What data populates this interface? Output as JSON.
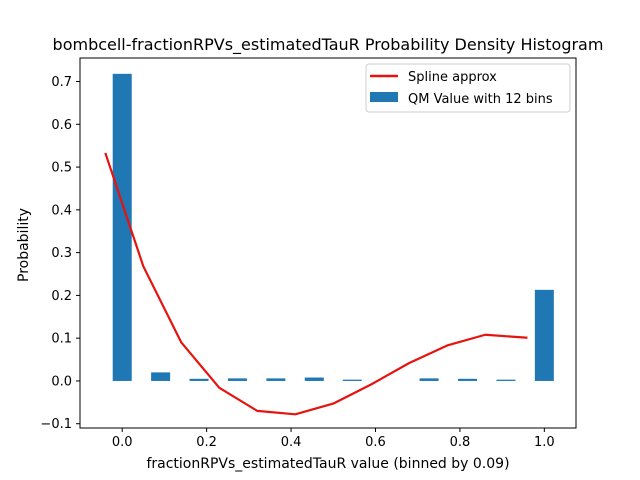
{
  "chart_data": {
    "type": "bar",
    "title": "bombcell-fractionRPVs_estimatedTauR Probability Density Histogram",
    "xlabel": "fractionRPVs_estimatedTauR value (binned by 0.09)",
    "ylabel": "Probability",
    "xlim": [
      -0.1,
      1.075
    ],
    "ylim": [
      -0.11,
      0.755
    ],
    "xticks": [
      0.0,
      0.2,
      0.4,
      0.6,
      0.8,
      1.0
    ],
    "xtick_labels": [
      "0.0",
      "0.2",
      "0.4",
      "0.6",
      "0.8",
      "1.0"
    ],
    "yticks": [
      -0.1,
      0.0,
      0.1,
      0.2,
      0.3,
      0.4,
      0.5,
      0.6,
      0.7
    ],
    "ytick_labels": [
      "−0.1",
      "0.0",
      "0.1",
      "0.2",
      "0.3",
      "0.4",
      "0.5",
      "0.6",
      "0.7"
    ],
    "grid": false,
    "legend_position": "top-right",
    "bars": {
      "name": "QM Value with 12 bins",
      "color": "#1f77b4",
      "width": 0.045,
      "x": [
        0.0,
        0.091,
        0.182,
        0.273,
        0.364,
        0.455,
        0.545,
        0.636,
        0.727,
        0.818,
        0.909,
        1.0
      ],
      "values": [
        0.718,
        0.02,
        0.005,
        0.006,
        0.006,
        0.008,
        0.003,
        0.0,
        0.006,
        0.005,
        0.003,
        0.213
      ]
    },
    "line": {
      "name": "Spline approx",
      "color": "#e6130f",
      "x": [
        -0.04,
        0.05,
        0.14,
        0.23,
        0.32,
        0.41,
        0.5,
        0.59,
        0.68,
        0.77,
        0.86,
        0.96
      ],
      "y": [
        0.533,
        0.268,
        0.09,
        -0.016,
        -0.07,
        -0.078,
        -0.053,
        -0.008,
        0.042,
        0.083,
        0.108,
        0.101
      ]
    }
  }
}
